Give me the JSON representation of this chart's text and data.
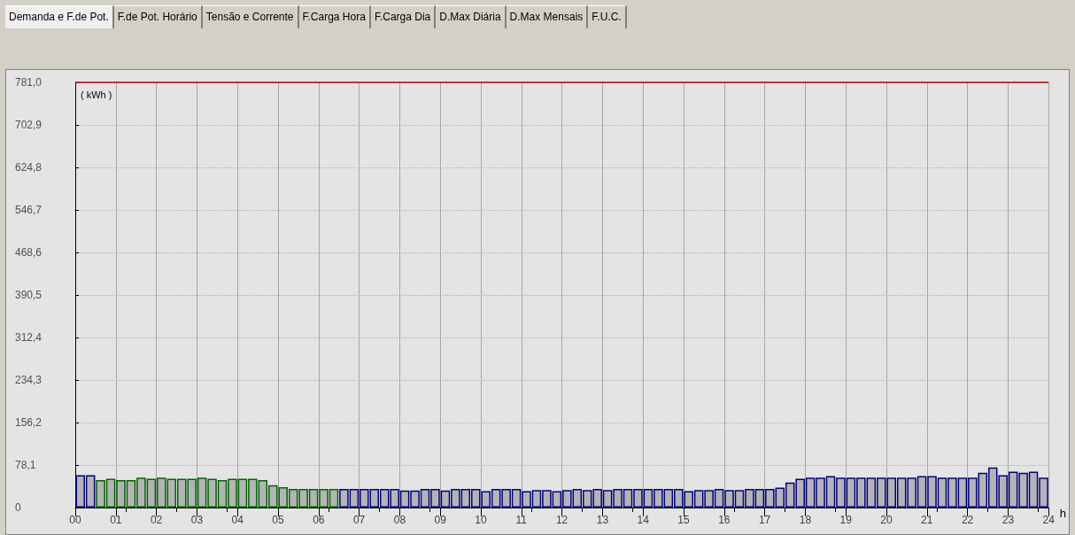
{
  "chart_data": {
    "type": "bar",
    "ylabel": "( kWh )",
    "xlabel": "h",
    "annotations": [
      "Demanda e F.de Pot.",
      "F.de Pot. Horário",
      "Tensão e Corrente",
      "F.Carga Hora",
      "F.Carga Dia",
      "D.Max Diária",
      "D.Max Mensais",
      "F.U.C."
    ],
    "x": [
      0.125,
      0.375,
      0.625,
      0.875,
      1.125,
      1.375,
      1.625,
      1.875,
      2.125,
      2.375,
      2.625,
      2.875,
      3.125,
      3.375,
      3.625,
      3.875,
      4.125,
      4.375,
      4.625,
      4.875,
      5.125,
      5.375,
      5.625,
      5.875,
      6.125,
      6.375,
      6.625,
      6.875,
      7.125,
      7.375,
      7.625,
      7.875,
      8.125,
      8.375,
      8.625,
      8.875,
      9.125,
      9.375,
      9.625,
      9.875,
      10.125,
      10.375,
      10.625,
      10.875,
      11.125,
      11.375,
      11.625,
      11.875,
      12.125,
      12.375,
      12.625,
      12.875,
      13.125,
      13.375,
      13.625,
      13.875,
      14.125,
      14.375,
      14.625,
      14.875,
      15.125,
      15.375,
      15.625,
      15.875,
      16.125,
      16.375,
      16.625,
      16.875,
      17.125,
      17.375,
      17.625,
      17.875,
      18.125,
      18.375,
      18.625,
      18.875,
      19.125,
      19.375,
      19.625,
      19.875,
      20.125,
      20.375,
      20.625,
      20.875,
      21.125,
      21.375,
      21.625,
      21.875,
      22.125,
      22.375,
      22.625,
      22.875,
      23.125,
      23.375,
      23.625,
      23.875
    ],
    "values": [
      59.4,
      59.4,
      50.6,
      52.8,
      50.6,
      50.6,
      55,
      52.8,
      55,
      52.8,
      52.8,
      52.8,
      55,
      52.8,
      50.6,
      52.8,
      52.8,
      52.8,
      50.6,
      41,
      37.4,
      34,
      34,
      34,
      34,
      34,
      34,
      34,
      34,
      34,
      34,
      34,
      31.4,
      31.4,
      34,
      34,
      31.4,
      34,
      34,
      34,
      30.2,
      34,
      34,
      34,
      30.2,
      32,
      32,
      30.2,
      32,
      34,
      32,
      34,
      32,
      34,
      34,
      34,
      34,
      34,
      34,
      34,
      30.2,
      32,
      32,
      34,
      32,
      32,
      34,
      34,
      34,
      36.8,
      46,
      52.8,
      55,
      55,
      57.8,
      55,
      55,
      55,
      55,
      55,
      55,
      55,
      55,
      57.8,
      57.8,
      55,
      55,
      55,
      55,
      63.8,
      73.7,
      59.4,
      66,
      63.8,
      66,
      55
    ],
    "color": "#b4b4b4",
    "colors": [
      "#000080",
      "#000080",
      "#006400",
      "#006400",
      "#006400",
      "#006400",
      "#006400",
      "#006400",
      "#006400",
      "#006400",
      "#006400",
      "#006400",
      "#006400",
      "#006400",
      "#006400",
      "#006400",
      "#006400",
      "#006400",
      "#006400",
      "#006400",
      "#006400",
      "#006400",
      "#006400",
      "#006400",
      "#006400",
      "#006400",
      "#000080",
      "#000080",
      "#000080",
      "#000080",
      "#000080",
      "#000080",
      "#000080",
      "#000080",
      "#000080",
      "#000080",
      "#000080",
      "#000080",
      "#000080",
      "#000080",
      "#000080",
      "#000080",
      "#000080",
      "#000080",
      "#000080",
      "#000080",
      "#000080",
      "#000080",
      "#000080",
      "#000080",
      "#000080",
      "#000080",
      "#000080",
      "#000080",
      "#000080",
      "#000080",
      "#000080",
      "#000080",
      "#000080",
      "#000080",
      "#000080",
      "#000080",
      "#000080",
      "#000080",
      "#000080",
      "#000080",
      "#000080",
      "#000080",
      "#000080",
      "#000080",
      "#000080",
      "#000080",
      "#000080",
      "#000080",
      "#000080",
      "#000080",
      "#000080",
      "#000080",
      "#000080",
      "#000080",
      "#000080",
      "#000080",
      "#000080",
      "#000080",
      "#000080",
      "#000080",
      "#000080",
      "#000080",
      "#000080",
      "#000080",
      "#000080",
      "#000080",
      "#000080",
      "#000080",
      "#000080",
      "#000080"
    ],
    "xlim": [
      0,
      24
    ],
    "xticks": [
      {
        "value": 0,
        "label": "00"
      },
      {
        "value": 1,
        "label": "01"
      },
      {
        "value": 2,
        "label": "02"
      },
      {
        "value": 3,
        "label": "03"
      },
      {
        "value": 4,
        "label": "04"
      },
      {
        "value": 5,
        "label": "05"
      },
      {
        "value": 6,
        "label": "06"
      },
      {
        "value": 7,
        "label": "07"
      },
      {
        "value": 8,
        "label": "08"
      },
      {
        "value": 9,
        "label": "09"
      },
      10,
      11,
      12,
      13,
      14,
      15,
      16,
      17,
      18,
      19,
      20,
      21,
      22,
      23,
      24
    ],
    "ylim": [
      0,
      781
    ],
    "yticks": [
      0,
      {
        "value": 78.1,
        "label": "78,1"
      },
      {
        "value": 156.2,
        "label": "156,2"
      },
      {
        "value": 234.3,
        "label": "234,3"
      },
      {
        "value": 312.4,
        "label": "312,4"
      },
      {
        "value": 390.5,
        "label": "390,5"
      },
      {
        "value": 468.6,
        "label": "468,6"
      },
      {
        "value": 546.7,
        "label": "546,7"
      },
      {
        "value": 624.8,
        "label": "624,8"
      },
      {
        "value": 702.9,
        "label": "702,9"
      },
      {
        "value": 781,
        "label": "781,0"
      }
    ],
    "ref_lines": [
      {
        "axis": "y",
        "value": 781,
        "color": "#c00000"
      }
    ],
    "grid": true
  }
}
